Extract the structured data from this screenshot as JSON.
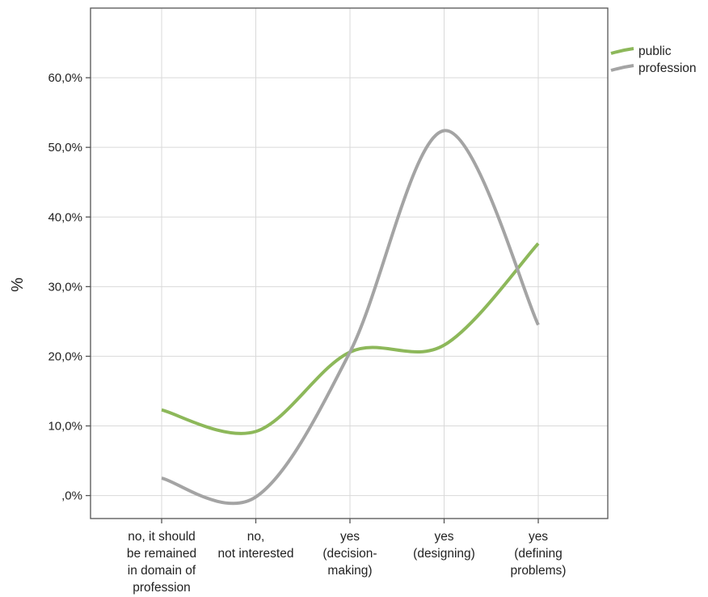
{
  "chart_data": {
    "type": "line",
    "title": "",
    "xlabel": "",
    "ylabel": "%",
    "categories": [
      [
        "no, it should",
        "be remained",
        "in domain of",
        "profession"
      ],
      [
        "no,",
        "not interested"
      ],
      [
        "yes",
        "(decision-",
        "making)"
      ],
      [
        "yes",
        "(designing)"
      ],
      [
        "yes",
        "(defining",
        "problems)"
      ]
    ],
    "y_ticks": [
      0,
      10,
      20,
      30,
      40,
      50,
      60
    ],
    "y_tick_labels": [
      ",0%",
      "10,0%",
      "20,0%",
      "30,0%",
      "40,0%",
      "50,0%",
      "60,0%"
    ],
    "ylim": [
      -3.3,
      70
    ],
    "grid": true,
    "smooth": true,
    "legend_position": "top-right",
    "series": [
      {
        "name": "public",
        "color": "#8db85a",
        "values": [
          12.3,
          9.2,
          20.6,
          21.6,
          36.2
        ]
      },
      {
        "name": "profession",
        "color": "#a4a4a4",
        "values": [
          2.5,
          -0.2,
          20.6,
          52.4,
          24.5
        ]
      }
    ]
  }
}
